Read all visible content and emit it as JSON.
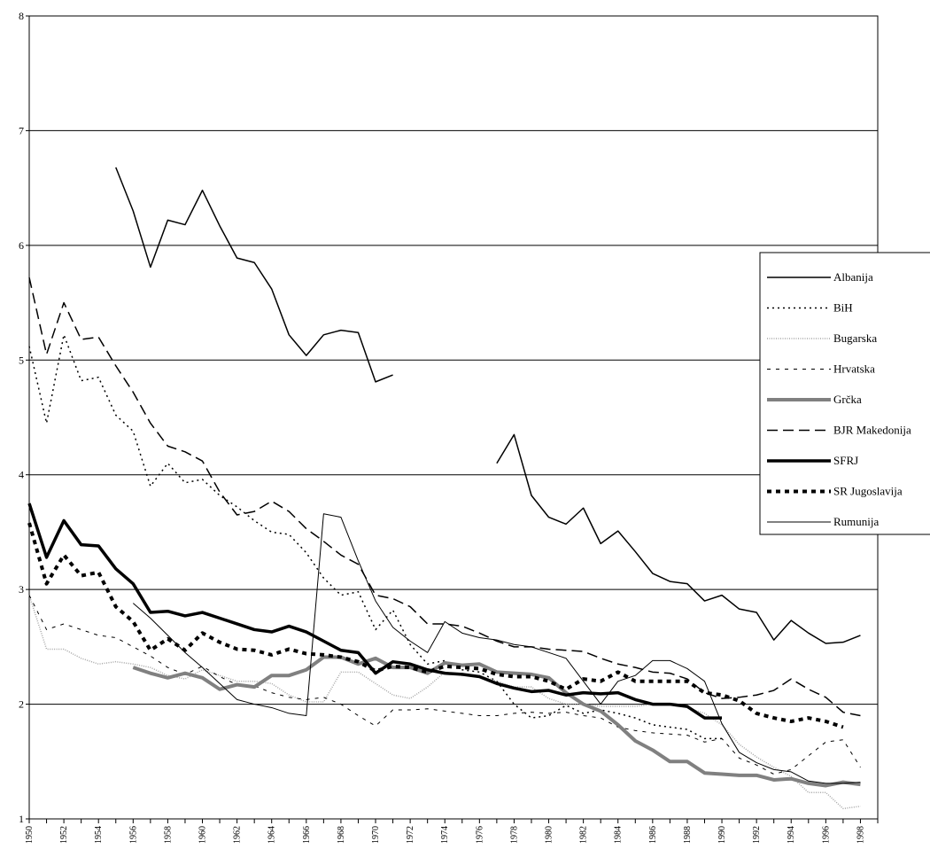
{
  "chart_data": {
    "type": "line",
    "title": "",
    "xlabel": "",
    "ylabel": "",
    "xlim": [
      1950,
      1999
    ],
    "ylim": [
      1,
      8
    ],
    "y_ticks": [
      "1",
      "2",
      "3",
      "4",
      "5",
      "6",
      "7",
      "8"
    ],
    "x_ticks": [
      "1950",
      "1952",
      "1954",
      "1956",
      "1958",
      "1960",
      "1962",
      "1964",
      "1966",
      "1968",
      "1970",
      "1972",
      "1974",
      "1976",
      "1978",
      "1980",
      "1982",
      "1984",
      "1986",
      "1988",
      "1990",
      "1992",
      "1994",
      "1996",
      "1998"
    ],
    "grid": "horizontal",
    "legend_position": "right",
    "series": [
      {
        "name": "Albanija",
        "style": {
          "stroke": "#000000",
          "width": 1.5,
          "dash": ""
        },
        "x": [
          1955,
          1956,
          1957,
          1958,
          1959,
          1960,
          1961,
          1962,
          1963,
          1964,
          1965,
          1966,
          1967,
          1968,
          1969,
          1970,
          1971,
          null,
          1977,
          1978,
          1979,
          1980,
          1981,
          1982,
          1983,
          1984,
          1985,
          1986,
          1987,
          1988,
          1989,
          1990,
          1991,
          1992,
          1993,
          1994,
          1995,
          1996,
          1997,
          1998
        ],
        "values": [
          6.68,
          6.3,
          5.81,
          6.22,
          6.18,
          6.48,
          6.17,
          5.89,
          5.85,
          5.62,
          5.22,
          5.04,
          5.22,
          5.26,
          5.24,
          4.81,
          4.87,
          null,
          4.1,
          4.35,
          3.82,
          3.63,
          3.57,
          3.71,
          3.4,
          3.51,
          3.33,
          3.14,
          3.07,
          3.05,
          2.9,
          2.95,
          2.83,
          2.8,
          2.56,
          2.73,
          2.62,
          2.53,
          2.54,
          2.6
        ]
      },
      {
        "name": "BiH",
        "style": {
          "stroke": "#000000",
          "width": 1.5,
          "dash": "2,4"
        },
        "x": [
          1950,
          1951,
          1952,
          1953,
          1954,
          1955,
          1956,
          1957,
          1958,
          1959,
          1960,
          1961,
          1962,
          1963,
          1964,
          1965,
          1966,
          1967,
          1968,
          1969,
          1970,
          1971,
          1972,
          1973,
          1974,
          1975,
          1976,
          1977,
          1978,
          1979,
          1980,
          1981,
          1982,
          1983,
          1984,
          1985,
          1986,
          1987,
          1988,
          1989,
          1990
        ],
        "values": [
          5.12,
          4.45,
          5.22,
          4.82,
          4.85,
          4.52,
          4.38,
          3.9,
          4.1,
          3.93,
          3.96,
          3.82,
          3.72,
          3.6,
          3.5,
          3.48,
          3.32,
          3.1,
          2.95,
          2.98,
          2.65,
          2.82,
          2.52,
          2.35,
          2.38,
          2.3,
          2.28,
          2.2,
          2.0,
          1.88,
          1.9,
          1.99,
          1.92,
          1.95,
          1.92,
          1.88,
          1.82,
          1.8,
          1.78,
          1.7,
          1.7
        ]
      },
      {
        "name": "Bugarska",
        "style": {
          "stroke": "#a6a6a6",
          "width": 1.5,
          "dash": "1,1.5"
        },
        "x": [
          1950,
          1951,
          1952,
          1953,
          1954,
          1955,
          1956,
          1957,
          1958,
          1959,
          1960,
          1961,
          1962,
          1963,
          1964,
          1965,
          1966,
          1967,
          1968,
          1969,
          1970,
          1971,
          1972,
          1973,
          1974,
          1975,
          1976,
          1977,
          1978,
          1979,
          1980,
          1981,
          1982,
          1983,
          1984,
          1985,
          1986,
          1987,
          1988,
          1989,
          1990,
          1991,
          1992,
          1993,
          1994,
          1995,
          1996,
          1997,
          1998
        ],
        "values": [
          2.95,
          2.48,
          2.48,
          2.4,
          2.35,
          2.37,
          2.35,
          2.32,
          2.25,
          2.22,
          2.3,
          2.25,
          2.2,
          2.2,
          2.18,
          2.08,
          2.02,
          2.02,
          2.28,
          2.28,
          2.18,
          2.08,
          2.05,
          2.15,
          2.28,
          2.25,
          2.25,
          2.2,
          2.15,
          2.15,
          2.05,
          2.0,
          2.0,
          1.98,
          1.98,
          1.98,
          2.0,
          2.0,
          1.97,
          1.92,
          1.82,
          1.65,
          1.54,
          1.45,
          1.37,
          1.23,
          1.23,
          1.09,
          1.11
        ]
      },
      {
        "name": "Hrvatska",
        "style": {
          "stroke": "#000000",
          "width": 1,
          "dash": "4,6"
        },
        "x": [
          1950,
          1951,
          1952,
          1953,
          1954,
          1955,
          1956,
          1957,
          1958,
          1959,
          1960,
          1961,
          1962,
          1963,
          1964,
          1965,
          1966,
          1967,
          1968,
          1969,
          1970,
          1971,
          1972,
          1973,
          1974,
          1975,
          1976,
          1977,
          1978,
          1979,
          1980,
          1981,
          1982,
          1983,
          1984,
          1985,
          1986,
          1987,
          1988,
          1989,
          1990,
          1991,
          1992,
          1993,
          1994,
          1995,
          1996,
          1997,
          1998
        ],
        "values": [
          2.95,
          2.65,
          2.7,
          2.65,
          2.6,
          2.58,
          2.5,
          2.42,
          2.32,
          2.26,
          2.33,
          2.24,
          2.17,
          2.16,
          2.1,
          2.06,
          2.04,
          2.06,
          2.0,
          1.9,
          1.81,
          1.95,
          1.95,
          1.96,
          1.94,
          1.92,
          1.9,
          1.9,
          1.92,
          1.93,
          1.92,
          1.93,
          1.9,
          1.88,
          1.8,
          1.77,
          1.75,
          1.74,
          1.73,
          1.67,
          1.7,
          1.53,
          1.47,
          1.39,
          1.43,
          1.55,
          1.67,
          1.69,
          1.45
        ]
      },
      {
        "name": "Grčka",
        "style": {
          "stroke": "#808080",
          "width": 4,
          "dash": ""
        },
        "x": [
          1956,
          1957,
          1958,
          1959,
          1960,
          1961,
          1962,
          1963,
          1964,
          1965,
          1966,
          1967,
          1968,
          1969,
          1970,
          1971,
          1972,
          1973,
          1974,
          1975,
          1976,
          1977,
          1978,
          1979,
          1980,
          1981,
          1982,
          1983,
          1984,
          1985,
          1986,
          1987,
          1988,
          1989,
          1990,
          1991,
          1992,
          1993,
          1994,
          1995,
          1996,
          1997,
          1998
        ],
        "values": [
          2.32,
          2.27,
          2.23,
          2.27,
          2.23,
          2.13,
          2.17,
          2.15,
          2.25,
          2.25,
          2.3,
          2.41,
          2.41,
          2.35,
          2.4,
          2.32,
          2.32,
          2.27,
          2.36,
          2.34,
          2.35,
          2.28,
          2.27,
          2.26,
          2.23,
          2.1,
          2.0,
          1.94,
          1.82,
          1.68,
          1.6,
          1.5,
          1.5,
          1.4,
          1.39,
          1.38,
          1.38,
          1.34,
          1.35,
          1.31,
          1.29,
          1.32,
          1.3
        ]
      },
      {
        "name": "BJR Makedonija",
        "style": {
          "stroke": "#000000",
          "width": 1.5,
          "dash": "12,6"
        },
        "x": [
          1950,
          1951,
          1952,
          1953,
          1954,
          1955,
          1956,
          1957,
          1958,
          1959,
          1960,
          1961,
          1962,
          1963,
          1964,
          1965,
          1966,
          1967,
          1968,
          1969,
          1970,
          1971,
          1972,
          1973,
          1974,
          1975,
          1976,
          1977,
          1978,
          1979,
          1980,
          1981,
          1982,
          1983,
          1984,
          1985,
          1986,
          1987,
          1988,
          1989,
          1990,
          1991,
          1992,
          1993,
          1994,
          1995,
          1996,
          1997,
          1998
        ],
        "values": [
          5.72,
          5.05,
          5.5,
          5.18,
          5.2,
          4.95,
          4.72,
          4.45,
          4.25,
          4.2,
          4.12,
          3.85,
          3.65,
          3.68,
          3.77,
          3.68,
          3.53,
          3.42,
          3.3,
          3.22,
          2.95,
          2.92,
          2.85,
          2.7,
          2.7,
          2.68,
          2.62,
          2.55,
          2.5,
          2.5,
          2.48,
          2.47,
          2.46,
          2.4,
          2.35,
          2.32,
          2.28,
          2.27,
          2.22,
          2.1,
          2.05,
          2.06,
          2.08,
          2.12,
          2.22,
          2.13,
          2.06,
          1.93,
          1.9
        ]
      },
      {
        "name": "SFRJ",
        "style": {
          "stroke": "#000000",
          "width": 3.5,
          "dash": ""
        },
        "x": [
          1950,
          1951,
          1952,
          1953,
          1954,
          1955,
          1956,
          1957,
          1958,
          1959,
          1960,
          1961,
          1962,
          1963,
          1964,
          1965,
          1966,
          1967,
          1968,
          1969,
          1970,
          1971,
          1972,
          1973,
          1974,
          1975,
          1976,
          1977,
          1978,
          1979,
          1980,
          1981,
          1982,
          1983,
          1984,
          1985,
          1986,
          1987,
          1988,
          1989,
          1990
        ],
        "values": [
          3.75,
          3.28,
          3.6,
          3.39,
          3.38,
          3.18,
          3.05,
          2.8,
          2.81,
          2.77,
          2.8,
          2.75,
          2.7,
          2.65,
          2.63,
          2.68,
          2.63,
          2.55,
          2.47,
          2.45,
          2.27,
          2.37,
          2.35,
          2.3,
          2.27,
          2.26,
          2.24,
          2.18,
          2.14,
          2.11,
          2.12,
          2.08,
          2.1,
          2.09,
          2.1,
          2.04,
          2.0,
          2.0,
          1.98,
          1.88,
          1.88
        ]
      },
      {
        "name": "SR Jugoslavija",
        "style": {
          "stroke": "#000000",
          "width": 4,
          "dash": "5,5"
        },
        "x": [
          1950,
          1951,
          1952,
          1953,
          1954,
          1955,
          1956,
          1957,
          1958,
          1959,
          1960,
          1961,
          1962,
          1963,
          1964,
          1965,
          1966,
          1967,
          1968,
          1969,
          1970,
          1971,
          1972,
          1973,
          1974,
          1975,
          1976,
          1977,
          1978,
          1979,
          1980,
          1981,
          1982,
          1983,
          1984,
          1985,
          1986,
          1987,
          1988,
          1989,
          1990,
          1991,
          1992,
          1993,
          1994,
          1995,
          1996,
          1997,
          1998
        ],
        "values": [
          3.58,
          3.05,
          3.3,
          3.12,
          3.15,
          2.85,
          2.72,
          2.47,
          2.57,
          2.47,
          2.62,
          2.54,
          2.48,
          2.47,
          2.43,
          2.48,
          2.44,
          2.43,
          2.41,
          2.37,
          2.29,
          2.33,
          2.32,
          2.28,
          2.33,
          2.32,
          2.31,
          2.26,
          2.24,
          2.24,
          2.2,
          2.13,
          2.22,
          2.2,
          2.28,
          2.2,
          2.2,
          2.2,
          2.2,
          2.1,
          2.08,
          2.03,
          1.92,
          1.88,
          1.85,
          1.88,
          1.85,
          1.8,
          null
        ]
      },
      {
        "name": "Rumunija",
        "style": {
          "stroke": "#000000",
          "width": 1,
          "dash": ""
        },
        "x": [
          1956,
          1957,
          1958,
          1959,
          1960,
          1961,
          1962,
          1963,
          1964,
          1965,
          1966,
          1967,
          1968,
          1969,
          1970,
          1971,
          1972,
          1973,
          1974,
          1975,
          1976,
          1977,
          1978,
          1979,
          1980,
          1981,
          1982,
          1983,
          1984,
          1985,
          1986,
          1987,
          1988,
          1989,
          1990,
          1991,
          1992,
          1993,
          1994,
          1995,
          1996,
          1997,
          1998
        ],
        "values": [
          2.88,
          2.75,
          2.6,
          2.45,
          2.32,
          2.18,
          2.04,
          2.0,
          1.97,
          1.92,
          1.9,
          3.66,
          3.63,
          3.25,
          2.9,
          2.67,
          2.55,
          2.45,
          2.72,
          2.62,
          2.58,
          2.56,
          2.52,
          2.5,
          2.45,
          2.4,
          2.2,
          2.0,
          2.2,
          2.25,
          2.38,
          2.38,
          2.31,
          2.2,
          1.83,
          1.58,
          1.49,
          1.43,
          1.41,
          1.33,
          1.31,
          1.31,
          1.32
        ]
      }
    ]
  }
}
